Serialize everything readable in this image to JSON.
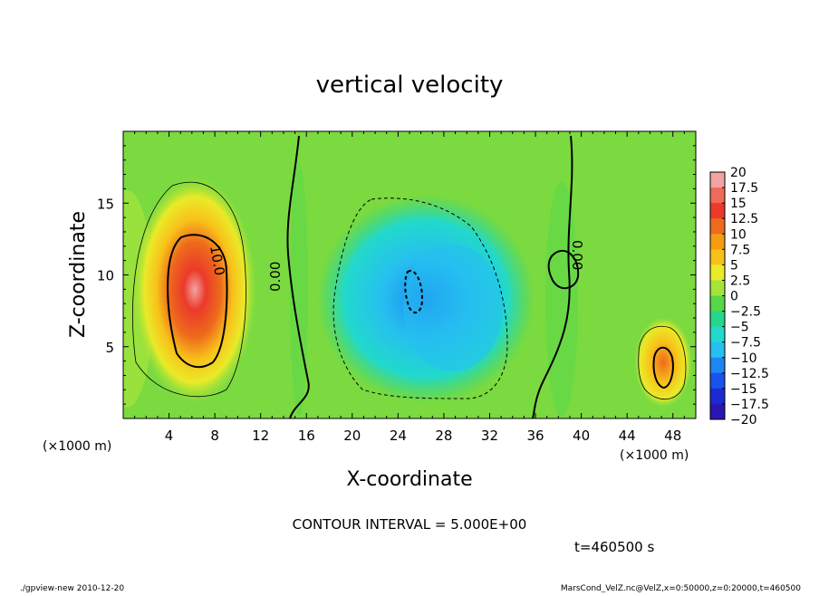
{
  "chart_data": {
    "type": "heatmap",
    "title": "vertical velocity",
    "xlabel": "X-coordinate",
    "ylabel": "Z-coordinate",
    "x_unit": "(×1000 m)",
    "y_unit": "(×1000 m)",
    "xlim": [
      0,
      50
    ],
    "ylim": [
      0,
      20
    ],
    "x_ticks": [
      4,
      8,
      12,
      16,
      20,
      24,
      28,
      32,
      36,
      40,
      44,
      48
    ],
    "y_ticks": [
      5,
      10,
      15
    ],
    "x_tick_labels": [
      "4",
      "8",
      "12",
      "16",
      "20",
      "24",
      "28",
      "32",
      "36",
      "40",
      "44",
      "48"
    ],
    "y_tick_labels": [
      "5",
      "10",
      "15"
    ],
    "colorbar": {
      "levels": [
        20,
        17.5,
        15,
        12.5,
        10,
        7.5,
        5,
        2.5,
        0,
        -2.5,
        -5,
        -7.5,
        -10,
        -12.5,
        -15,
        -17.5,
        -20
      ],
      "labels": [
        "20",
        "17.5",
        "15",
        "12.5",
        "10",
        "7.5",
        "5",
        "2.5",
        "0",
        "−2.5",
        "−5",
        "−7.5",
        "−10",
        "−12.5",
        "−15",
        "−17.5",
        "−20"
      ],
      "colors": [
        "#f2a3a3",
        "#ef6a5a",
        "#eb3a2a",
        "#ee6a1c",
        "#f49b12",
        "#f8c11a",
        "#eaea28",
        "#a6e43a",
        "#55d84a",
        "#26d68b",
        "#22d9cc",
        "#26bff0",
        "#1c86f2",
        "#1a52ec",
        "#1c2ad2",
        "#2a16b0",
        "#6a16c2"
      ]
    },
    "contour_labels": [
      "10.0",
      "0.00",
      "0.00"
    ],
    "contour_interval_text": "CONTOUR INTERVAL = 5.000E+00",
    "time_text": "t=460500 s",
    "features": [
      {
        "kind": "updraft",
        "x": 6.2,
        "z": 8.5,
        "peak": 18
      },
      {
        "kind": "updraft",
        "x": 47,
        "z": 4,
        "peak": 11
      },
      {
        "kind": "downdraft",
        "x": 27,
        "z": 8,
        "peak": -9
      }
    ]
  },
  "footer": {
    "left": "./gpview-new   2010-12-20",
    "right": "MarsCond_VelZ.nc@VelZ,x=0:50000,z=0:20000,t=460500"
  }
}
